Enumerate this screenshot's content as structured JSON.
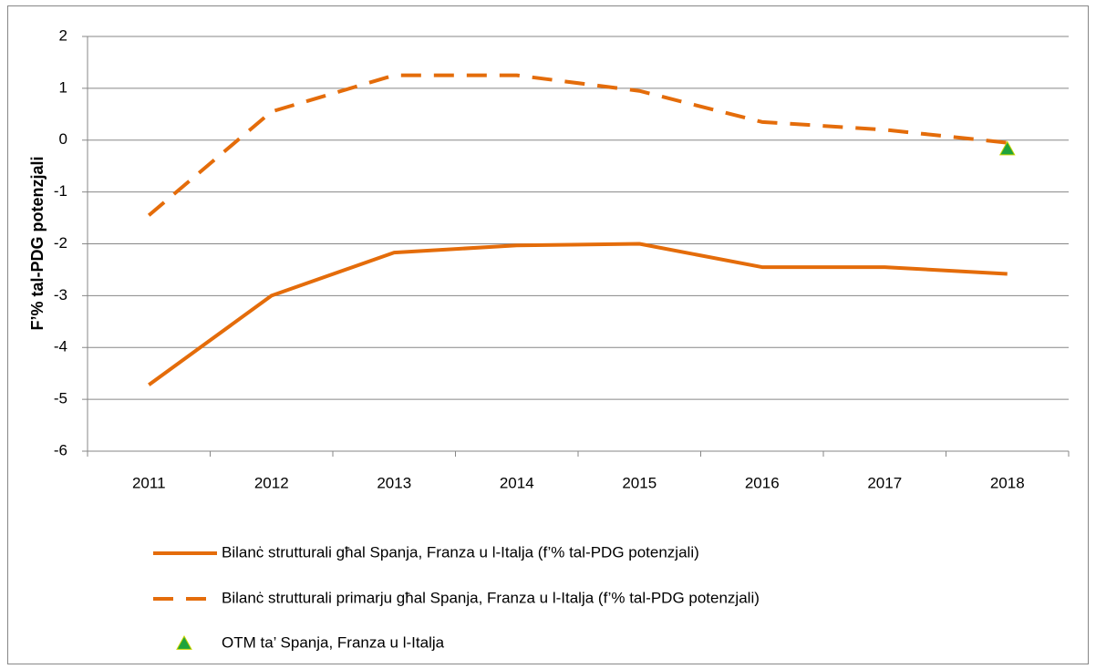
{
  "chart_data": {
    "type": "line",
    "y_label": "F’% tal-PDG potenzjali",
    "categories": [
      "2011",
      "2012",
      "2013",
      "2014",
      "2015",
      "2016",
      "2017",
      "2018"
    ],
    "series": [
      {
        "name": "Bilanċ strutturali għal Spanja, Franza u l-Italja (f’% tal-PDG potenzjali)",
        "color": "#e46c0a",
        "style": "solid",
        "values": [
          -4.72,
          -3.0,
          -2.17,
          -2.03,
          -2.0,
          -2.45,
          -2.45,
          -2.58
        ]
      },
      {
        "name": "Bilanċ strutturali primarju għal Spanja, Franza u l-Italja (f’% tal-PDG potenzjali)",
        "color": "#e46c0a",
        "style": "dashed",
        "values": [
          -1.45,
          0.55,
          1.25,
          1.25,
          0.95,
          0.35,
          0.2,
          -0.05
        ]
      },
      {
        "name": "OTM ta’ Spanja, Franza u l-Italja",
        "color": "#1fa33c",
        "style": "triangle",
        "values": [
          null,
          null,
          null,
          null,
          null,
          null,
          null,
          -0.17
        ]
      }
    ],
    "ylim": [
      -6,
      2
    ],
    "yticks": [
      -6,
      -5,
      -4,
      -3,
      -2,
      -1,
      0,
      1,
      2
    ],
    "grid": true,
    "legend": "bottom"
  }
}
